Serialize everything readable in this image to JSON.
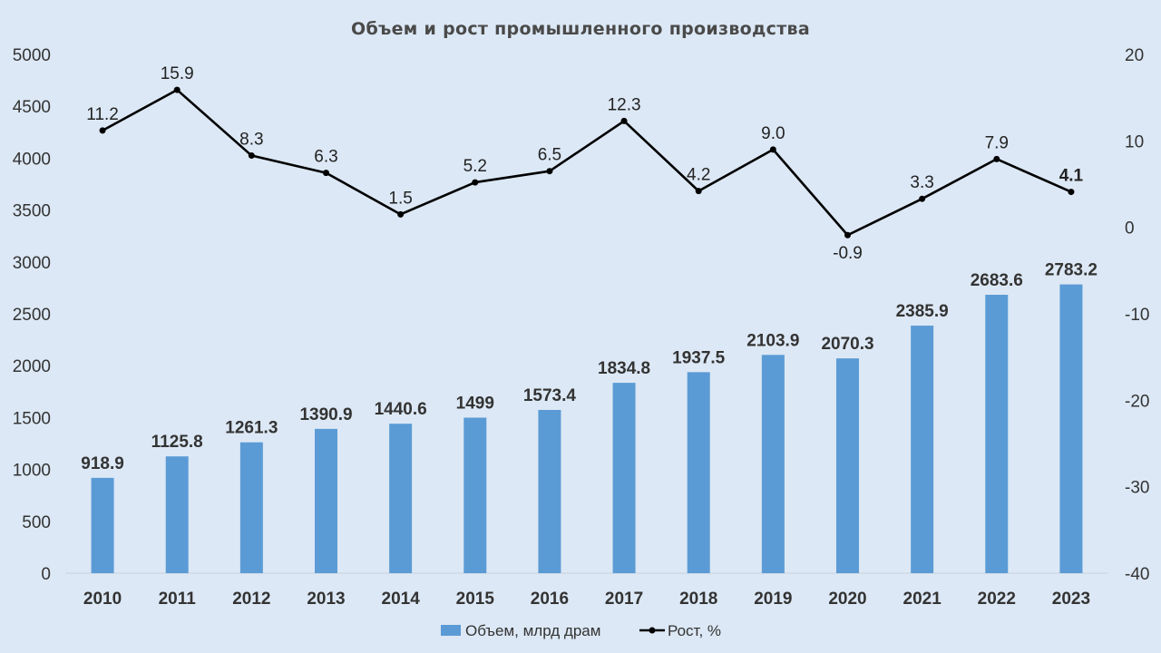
{
  "chart_data": {
    "type": "bar",
    "title": "Объем и рост промышленного производства",
    "categories": [
      "2010",
      "2011",
      "2012",
      "2013",
      "2014",
      "2015",
      "2016",
      "2017",
      "2018",
      "2019",
      "2020",
      "2021",
      "2022",
      "2023"
    ],
    "series": [
      {
        "name": "Объем, млрд драм",
        "type": "bar",
        "axis": "left",
        "color": "#5b9bd5",
        "values": [
          918.9,
          1125.8,
          1261.3,
          1390.9,
          1440.6,
          1499,
          1573.4,
          1834.8,
          1937.5,
          2103.9,
          2070.3,
          2385.9,
          2683.6,
          2783.2
        ],
        "labels": [
          "918.9",
          "1125.8",
          "1261.3",
          "1390.9",
          "1440.6",
          "1499",
          "1573.4",
          "1834.8",
          "1937.5",
          "2103.9",
          "2070.3",
          "2385.9",
          "2683.6",
          "2783.2"
        ]
      },
      {
        "name": "Рост, %",
        "type": "line",
        "axis": "right",
        "color": "#000000",
        "values": [
          11.2,
          15.9,
          8.3,
          6.3,
          1.5,
          5.2,
          6.5,
          12.3,
          4.2,
          9.0,
          -0.9,
          3.3,
          7.9,
          4.1
        ],
        "labels": [
          "11.2",
          "15.9",
          "8.3",
          "6.3",
          "1.5",
          "5.2",
          "6.5",
          "12.3",
          "4.2",
          "9.0",
          "-0.9",
          "3.3",
          "7.9",
          "4.1"
        ],
        "highlight_index": 13,
        "highlight_color": "#e00000"
      }
    ],
    "y_left": {
      "min": 0,
      "max": 5000,
      "ticks": [
        "0",
        "500",
        "1000",
        "1500",
        "2000",
        "2500",
        "3000",
        "3500",
        "4000",
        "4500",
        "5000"
      ]
    },
    "y_right": {
      "min": -40,
      "max": 20,
      "ticks": [
        "-40",
        "-30",
        "-20",
        "-10",
        "0",
        "10",
        "20"
      ]
    },
    "grid": false,
    "legend_position": "bottom"
  }
}
